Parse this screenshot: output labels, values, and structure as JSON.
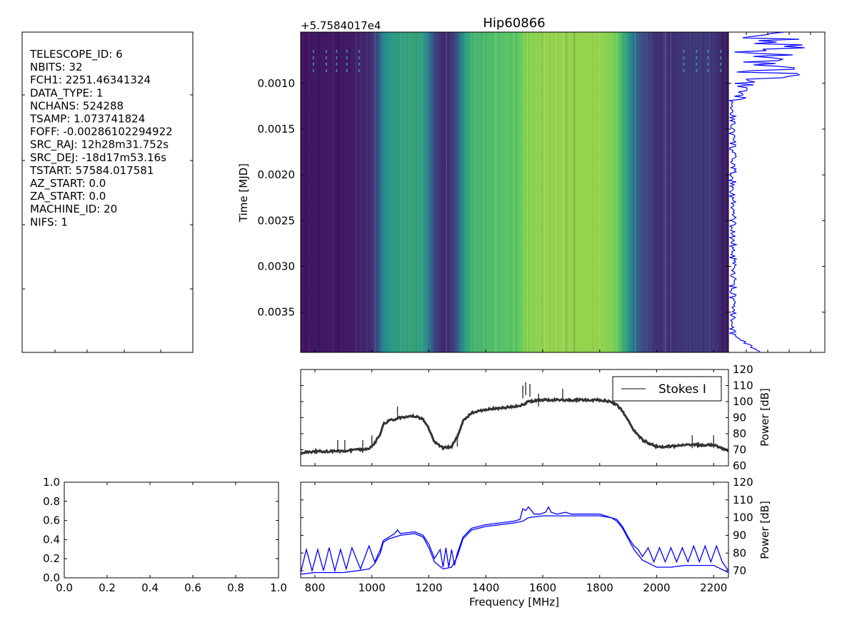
{
  "chart_data": [
    {
      "type": "table",
      "panel": "header",
      "rows": [
        "TELESCOPE_ID:  6",
        "NBITS:  32",
        "FCH1:  2251.46341324",
        "DATA_TYPE:  1",
        "NCHANS:  524288",
        "TSAMP:  1.073741824",
        "FOFF:  -0.00286102294922",
        "SRC_RAJ:  12h28m31.752s",
        "SRC_DEJ:  -18d17m53.16s",
        "TSTART:  57584.017581",
        "AZ_START:  0.0",
        "ZA_START:  0.0",
        "MACHINE_ID:  20",
        "NIFS:  1"
      ]
    },
    {
      "type": "heatmap",
      "panel": "waterfall",
      "title": "Hip60866",
      "ylabel": "Time [MJD]",
      "offset_text": "+5.7584017e4",
      "ylim": [
        0.00394,
        0.00044
      ],
      "yticks": [
        0.001,
        0.0015,
        0.002,
        0.0025,
        0.003,
        0.0035
      ],
      "ytick_labels": [
        "0.0010",
        "0.0015",
        "0.0020",
        "0.0025",
        "0.0030",
        "0.0035"
      ],
      "xlim": [
        750,
        2252
      ],
      "colormap": "viridis",
      "x": [
        750,
        800,
        850,
        900,
        950,
        990,
        1010,
        1030,
        1040,
        1060,
        1100,
        1150,
        1180,
        1200,
        1220,
        1250,
        1280,
        1300,
        1320,
        1350,
        1400,
        1450,
        1500,
        1530,
        1550,
        1600,
        1650,
        1700,
        1750,
        1800,
        1840,
        1860,
        1880,
        1900,
        1920,
        1950,
        2000,
        2050,
        2100,
        2150,
        2200,
        2252
      ],
      "power_db": [
        68,
        69,
        69,
        69,
        70,
        71,
        74,
        80,
        86,
        88,
        90,
        91,
        89,
        83,
        75,
        71,
        72,
        78,
        88,
        93,
        95,
        96,
        97,
        98,
        100,
        101,
        101,
        101,
        101,
        101,
        100,
        98,
        94,
        88,
        82,
        76,
        72,
        72,
        73,
        73,
        73,
        69
      ]
    },
    {
      "type": "line",
      "panel": "time-series",
      "yticks": [
        0.001,
        0.0015,
        0.002,
        0.0025,
        0.003,
        0.0035
      ],
      "ylim": [
        0.00394,
        0.00044
      ]
    },
    {
      "type": "line",
      "panel": "spectrum",
      "ylabel": "Power [dB]",
      "ylim": [
        60,
        120
      ],
      "yticks": [
        60,
        70,
        80,
        90,
        100,
        110,
        120
      ],
      "xlim": [
        750,
        2252
      ],
      "legend": "top-right",
      "series": [
        {
          "name": "Stokes I",
          "color": "#333333",
          "x": [
            750,
            800,
            850,
            900,
            950,
            990,
            1010,
            1030,
            1040,
            1060,
            1100,
            1150,
            1180,
            1200,
            1220,
            1250,
            1280,
            1300,
            1320,
            1350,
            1400,
            1450,
            1500,
            1530,
            1550,
            1600,
            1650,
            1700,
            1750,
            1800,
            1840,
            1860,
            1880,
            1900,
            1920,
            1950,
            2000,
            2050,
            2100,
            2150,
            2200,
            2252
          ],
          "y": [
            68,
            69,
            69,
            69,
            70,
            71,
            74,
            80,
            86,
            88,
            90,
            91,
            89,
            83,
            75,
            71,
            72,
            78,
            88,
            93,
            95,
            96,
            97,
            98,
            100,
            101,
            101,
            101,
            101,
            101,
            100,
            98,
            94,
            88,
            82,
            76,
            72,
            72,
            73,
            73,
            73,
            69
          ]
        }
      ]
    },
    {
      "type": "line",
      "panel": "spectrum-minmax",
      "xlabel": "Frequency [MHz]",
      "ylabel": "Power [dB]",
      "ylim": [
        66,
        120
      ],
      "yticks": [
        70,
        80,
        90,
        100,
        110,
        120
      ],
      "xlim": [
        750,
        2252
      ],
      "xticks": [
        800,
        1000,
        1200,
        1400,
        1600,
        1800,
        2000,
        2200
      ],
      "series": [
        {
          "color": "#0000ff",
          "x": [
            750,
            800,
            850,
            900,
            950,
            990,
            1010,
            1030,
            1040,
            1060,
            1100,
            1150,
            1180,
            1200,
            1220,
            1250,
            1280,
            1300,
            1320,
            1350,
            1400,
            1450,
            1500,
            1530,
            1550,
            1600,
            1650,
            1700,
            1750,
            1800,
            1840,
            1860,
            1880,
            1900,
            1920,
            1950,
            2000,
            2050,
            2100,
            2150,
            2200,
            2252
          ],
          "y": [
            68,
            69,
            69,
            69,
            70,
            71,
            74,
            80,
            86,
            88,
            90,
            91,
            89,
            83,
            75,
            71,
            72,
            78,
            88,
            93,
            95,
            96,
            97,
            98,
            100,
            101,
            101,
            101,
            101,
            101,
            100,
            98,
            94,
            88,
            82,
            76,
            72,
            72,
            73,
            73,
            73,
            69
          ]
        },
        {
          "color": "#0000ff",
          "x": [
            750,
            770,
            790,
            810,
            830,
            850,
            870,
            890,
            910,
            930,
            960,
            990,
            1010,
            1030,
            1040,
            1060,
            1080,
            1090,
            1100,
            1150,
            1180,
            1200,
            1220,
            1240,
            1250,
            1260,
            1270,
            1280,
            1290,
            1300,
            1320,
            1350,
            1400,
            1450,
            1500,
            1520,
            1530,
            1540,
            1550,
            1560,
            1570,
            1590,
            1610,
            1620,
            1630,
            1650,
            1680,
            1700,
            1750,
            1800,
            1840,
            1860,
            1880,
            1900,
            1920,
            1935,
            1950,
            1970,
            1990,
            2010,
            2030,
            2050,
            2070,
            2090,
            2110,
            2130,
            2150,
            2170,
            2190,
            2210,
            2230,
            2252
          ],
          "y": [
            69,
            82,
            70,
            82,
            70,
            83,
            70,
            82,
            71,
            83,
            71,
            84,
            75,
            82,
            87,
            89,
            91,
            93,
            91,
            92,
            90,
            85,
            77,
            82,
            72,
            83,
            72,
            82,
            73,
            80,
            89,
            94,
            96,
            97,
            98,
            99,
            105,
            104,
            106,
            104,
            102,
            102,
            103,
            106,
            103,
            102,
            103,
            102,
            102,
            102,
            100,
            99,
            95,
            89,
            84,
            82,
            78,
            83,
            75,
            83,
            75,
            83,
            75,
            83,
            75,
            84,
            75,
            84,
            75,
            84,
            75,
            70
          ]
        }
      ]
    },
    {
      "type": "line",
      "panel": "empty-axes",
      "xlim": [
        0.0,
        1.0
      ],
      "ylim": [
        0.0,
        1.0
      ],
      "xticks": [
        0.0,
        0.2,
        0.4,
        0.6,
        0.8,
        1.0
      ],
      "yticks": [
        0.0,
        0.2,
        0.4,
        0.6,
        0.8,
        1.0
      ],
      "xtick_labels": [
        "0.0",
        "0.2",
        "0.4",
        "0.6",
        "0.8",
        "1.0"
      ],
      "ytick_labels": [
        "0.0",
        "0.2",
        "0.4",
        "0.6",
        "0.8",
        "1.0"
      ],
      "series": []
    }
  ]
}
